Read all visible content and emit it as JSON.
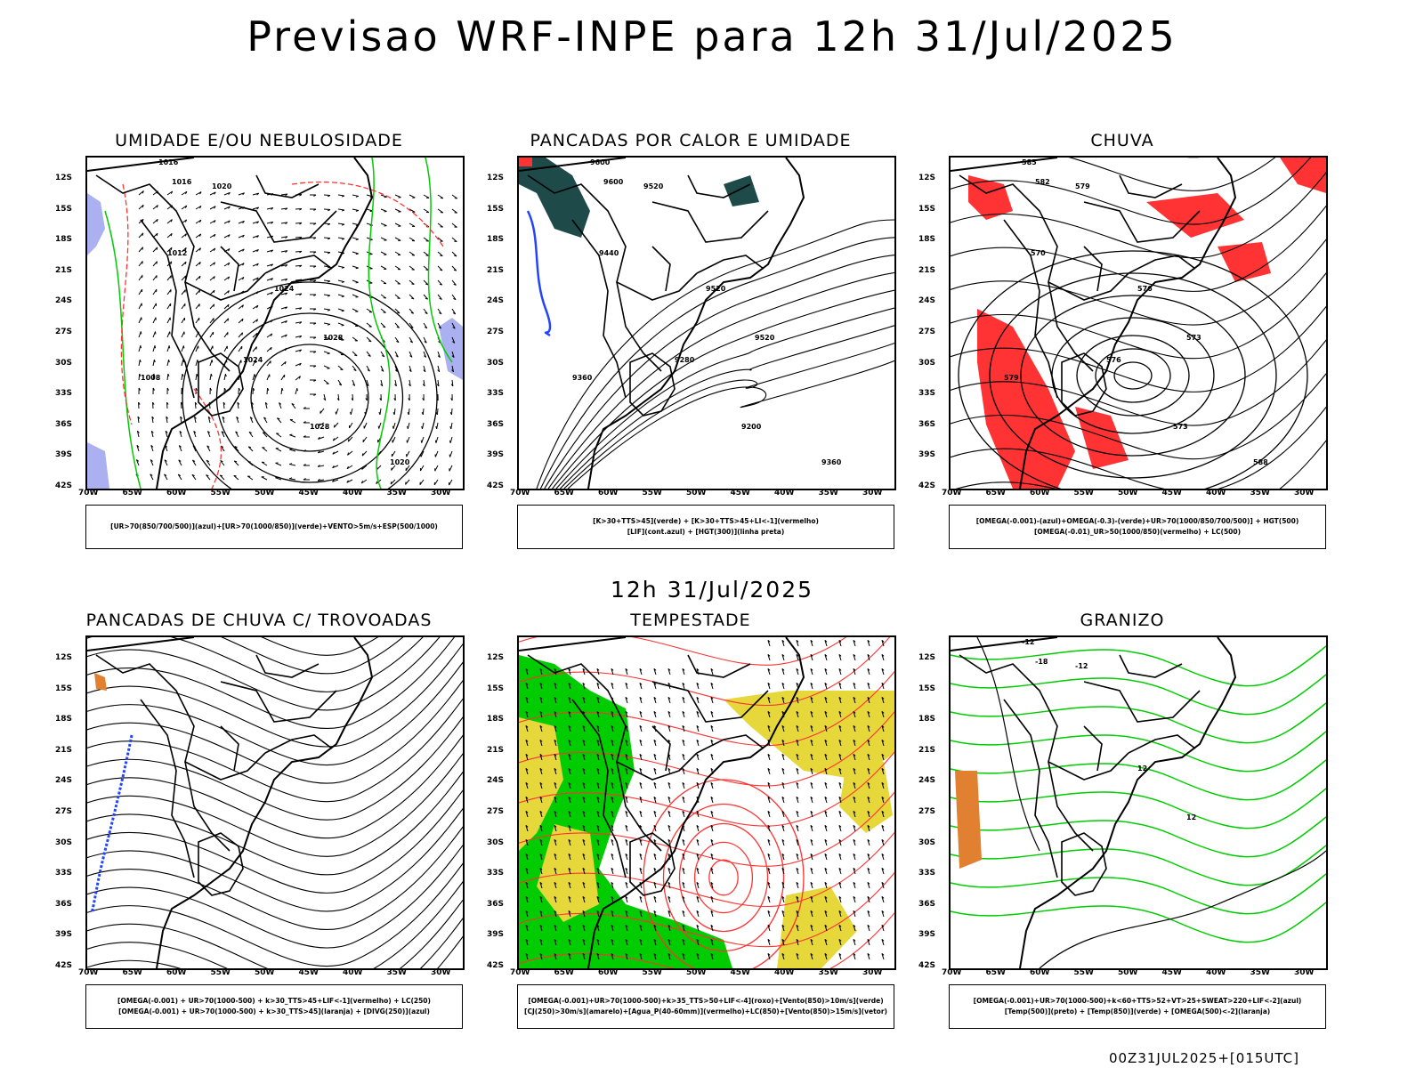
{
  "title": "Previsao WRF-INPE  para 12h 31/Jul/2025",
  "subtitle": "12h 31/Jul/2025",
  "footer": "00Z31JUL2025+[015UTC]",
  "axes": {
    "lat_labels": [
      "12S",
      "15S",
      "18S",
      "21S",
      "24S",
      "27S",
      "30S",
      "33S",
      "36S",
      "39S",
      "42S"
    ],
    "lon_labels": [
      "70W",
      "65W",
      "60W",
      "55W",
      "50W",
      "45W",
      "40W",
      "35W",
      "30W"
    ]
  },
  "panels": [
    {
      "title": "UMIDADE E/OU NEBULOSIDADE",
      "legend": [
        "[UR>70(850/700/500)](azul)+[UR>70(1000/850)](verde)+VENTO>5m/s+ESP(500/1000)"
      ],
      "contour_labels": [
        "1016",
        "1016",
        "1020",
        "1024",
        "1028",
        "1012",
        "1008",
        "1024",
        "1028",
        "1020"
      ],
      "icon": "wind-vector-field"
    },
    {
      "title": "PANCADAS POR CALOR E UMIDADE",
      "legend": [
        "[K>30+TTS>45](verde) + [K>30+TTS>45+LI<-1](vermelho)",
        "[LIF](cont.azul) + [HGT(300)](linha preta)"
      ],
      "contour_labels": [
        "9600",
        "9600",
        "9520",
        "9520",
        "9520",
        "9440",
        "9360",
        "9280",
        "9200",
        "9360"
      ],
      "icon": "height-contours"
    },
    {
      "title": "CHUVA",
      "legend": [
        "[OMEGA(-0.001)-(azul)+OMEGA(-0.3)-(verde)+UR>70(1000/850/700/500)] + HGT(500)",
        "[OMEGA(-0.01)_UR>50(1000/850)(vermelho) + LC(500)"
      ],
      "contour_labels": [
        "585",
        "582",
        "579",
        "576",
        "573",
        "570",
        "579",
        "576",
        "573",
        "588"
      ],
      "icon": "rain-shading"
    },
    {
      "title": "PANCADAS DE CHUVA C/ TROVOADAS",
      "legend": [
        "[OMEGA(-0.001) + UR>70(1000-500) + k>30_TTS>45+LIF<-1](vermelho) + LC(250)",
        "[OMEGA(-0.001) + UR>70(1000-500) + k>30_TTS>45](laranja) + [DIVG(250)](azul)"
      ],
      "contour_labels": [],
      "icon": "streamlines"
    },
    {
      "title": "TEMPESTADE",
      "legend": [
        "[OMEGA(-0.001)+UR>70(1000-500)+k>35_TTS>50+LIF<-4](roxo)+[Vento(850)>10m/s](verde)",
        "[CJ(250)>30m/s](amarelo)+[Agua_P(40-60mm)](vermelho)+LC(850)+[Vento(850)>15m/s](vetor)"
      ],
      "contour_labels": [],
      "icon": "storm-shading"
    },
    {
      "title": "GRANIZO",
      "legend": [
        "[OMEGA(-0.001)+UR>70(1000-500)+k<60+TTS>52+VT>25+SWEAT>220+LIF<-2](azul)",
        "[Temp(500)](preto) + [Temp(850)](verde) + [OMEGA(500)<-2](laranja)"
      ],
      "contour_labels": [
        "-12",
        "-18",
        "-12",
        "12",
        "12"
      ],
      "icon": "temperature-contours"
    }
  ],
  "colors": {
    "blue_shade": "#aab0f0",
    "green": "#00cc00",
    "red": "#ff3333",
    "teal": "#1f4a4a",
    "yellow": "#e6d83a",
    "orange": "#e08030",
    "blue": "#2244ff"
  }
}
